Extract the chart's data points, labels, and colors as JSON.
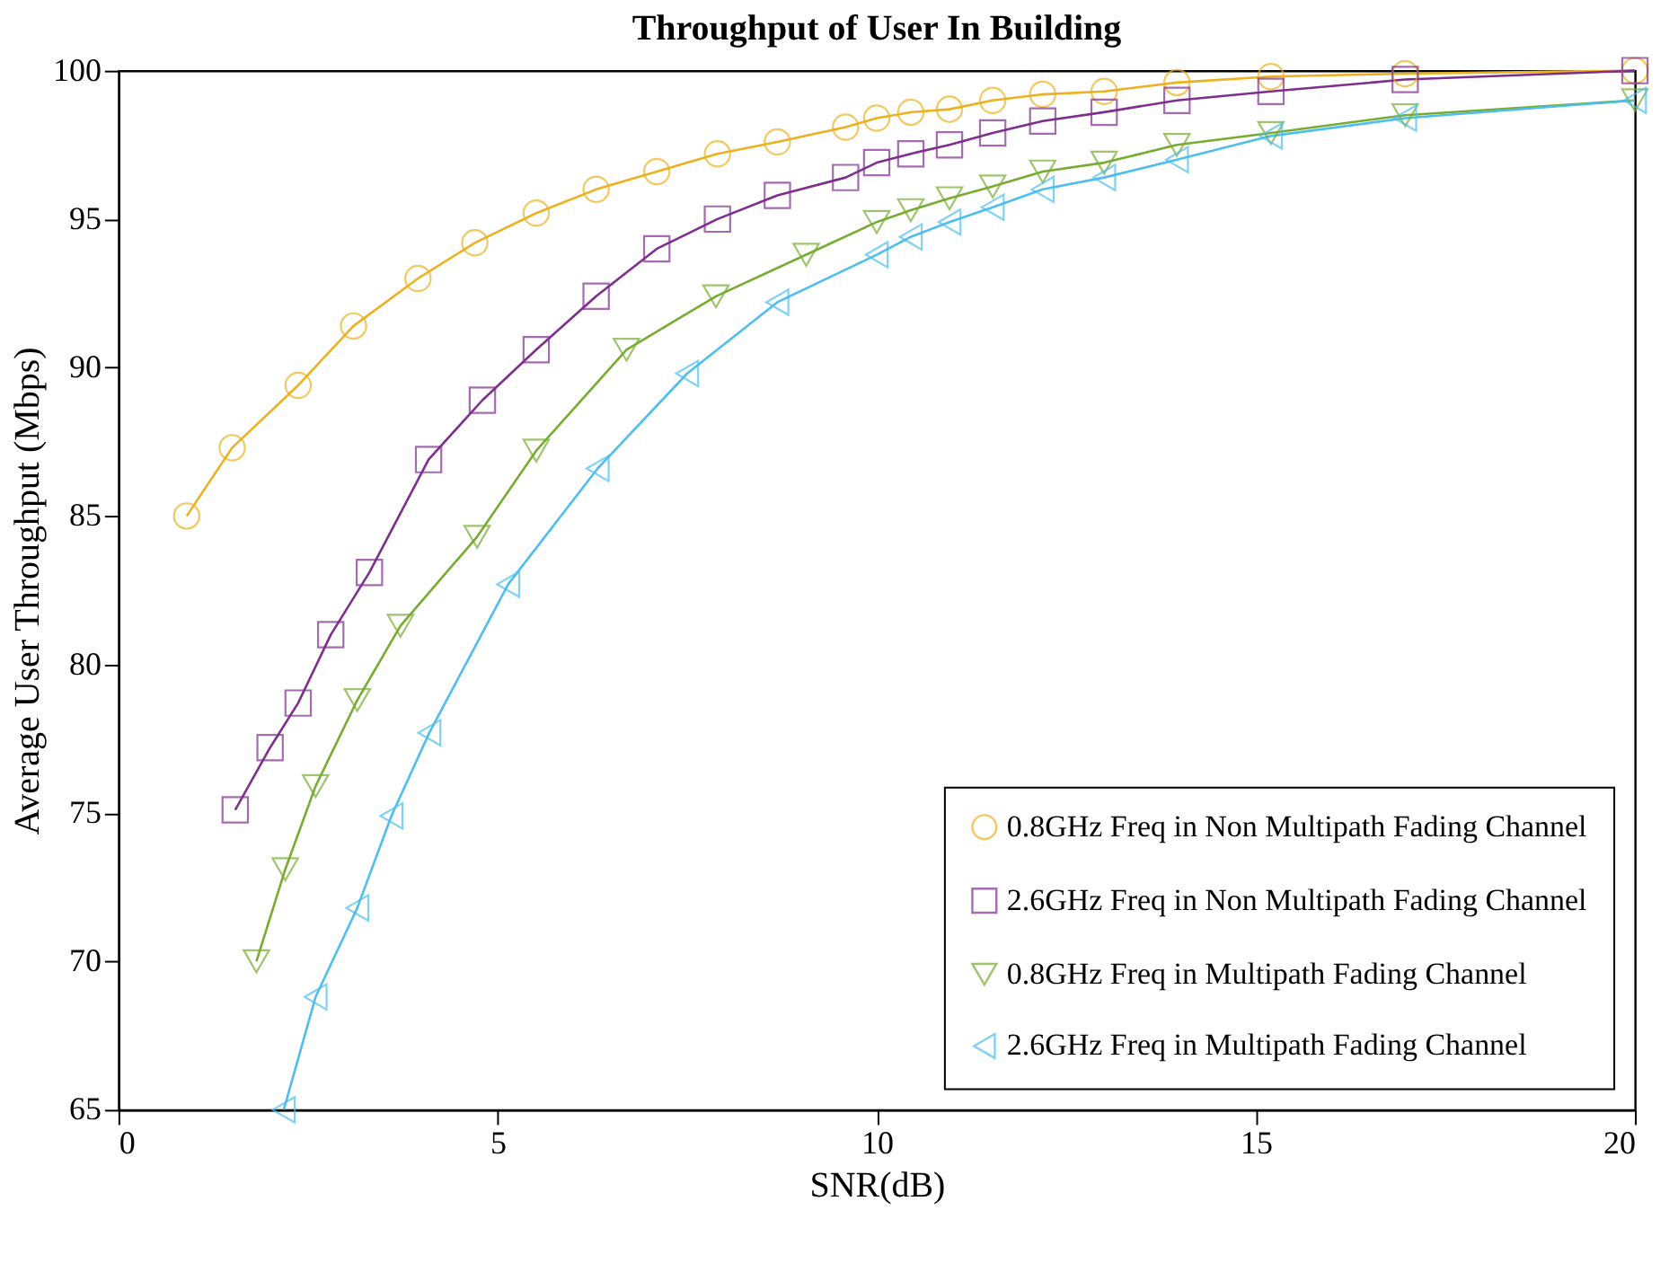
{
  "chart_data": {
    "type": "line",
    "title": "Throughput of User In Building",
    "xlabel": "SNR(dB)",
    "ylabel": "Average User Throughput (Mbps)",
    "xlim": [
      0,
      20
    ],
    "xticks": [
      0,
      5,
      10,
      15,
      20
    ],
    "ylim": [
      65,
      100
    ],
    "yticks": [
      65,
      70,
      75,
      80,
      85,
      90,
      95,
      100
    ],
    "grid": false,
    "legend": "bottom right",
    "line_style": "solid",
    "series": [
      {
        "name": "0.8GHz Freq in Non Multipath Fading Channel",
        "color": "#edb120",
        "marker": "circle",
        "x": [
          0.9,
          1.5,
          2.37,
          3.1,
          3.95,
          4.7,
          5.51,
          6.3,
          7.1,
          7.9,
          8.69,
          9.59,
          10.0,
          10.45,
          10.96,
          11.53,
          12.19,
          13.0,
          13.96,
          15.2,
          16.97,
          20.0
        ],
        "values": [
          85.0,
          87.3,
          89.4,
          91.4,
          93.0,
          94.2,
          95.2,
          96.0,
          96.6,
          97.2,
          97.6,
          98.1,
          98.4,
          98.6,
          98.7,
          99.0,
          99.2,
          99.3,
          99.6,
          99.8,
          99.9,
          100
        ]
      },
      {
        "name": "2.6GHz Freq in Non Multipath Fading Channel",
        "color": "#7e2f8e",
        "marker": "square",
        "x": [
          1.54,
          2.0,
          2.37,
          2.8,
          3.31,
          4.09,
          4.8,
          5.51,
          6.3,
          7.1,
          7.9,
          8.69,
          9.59,
          10.0,
          10.45,
          10.96,
          11.53,
          12.19,
          13.0,
          13.96,
          15.2,
          16.97,
          20.0
        ],
        "values": [
          75.1,
          77.2,
          78.7,
          81.0,
          83.1,
          86.9,
          88.9,
          90.6,
          92.4,
          94.0,
          95.0,
          95.8,
          96.4,
          96.9,
          97.2,
          97.5,
          97.9,
          98.3,
          98.6,
          99.0,
          99.3,
          99.7,
          100
        ]
      },
      {
        "name": "0.8GHz Freq in  Multipath Fading Channel",
        "color": "#77ac30",
        "marker": "triangle-down",
        "x": [
          1.82,
          2.2,
          2.6,
          3.15,
          3.72,
          4.73,
          5.51,
          6.7,
          7.88,
          9.07,
          10.0,
          10.45,
          10.96,
          11.53,
          12.19,
          13.0,
          13.96,
          15.2,
          16.97,
          20.0
        ],
        "values": [
          70.0,
          73.1,
          75.9,
          78.8,
          81.3,
          84.3,
          87.2,
          90.6,
          92.4,
          93.8,
          94.9,
          95.3,
          95.7,
          96.1,
          96.6,
          96.9,
          97.5,
          97.9,
          98.5,
          99.0
        ]
      },
      {
        "name": "2.6GHz Freq in Multipath Fading Channel",
        "color": "#4dbeee",
        "marker": "triangle-left",
        "x": [
          2.18,
          2.6,
          3.15,
          3.6,
          4.1,
          5.14,
          6.32,
          7.5,
          8.69,
          10.0,
          10.45,
          10.96,
          11.53,
          12.19,
          13.0,
          13.96,
          15.2,
          16.97,
          20.0
        ],
        "values": [
          65.0,
          68.8,
          71.8,
          74.9,
          77.7,
          82.7,
          86.6,
          89.8,
          92.2,
          93.8,
          94.4,
          94.9,
          95.4,
          96.0,
          96.4,
          97.0,
          97.8,
          98.4,
          99.0
        ]
      }
    ]
  }
}
